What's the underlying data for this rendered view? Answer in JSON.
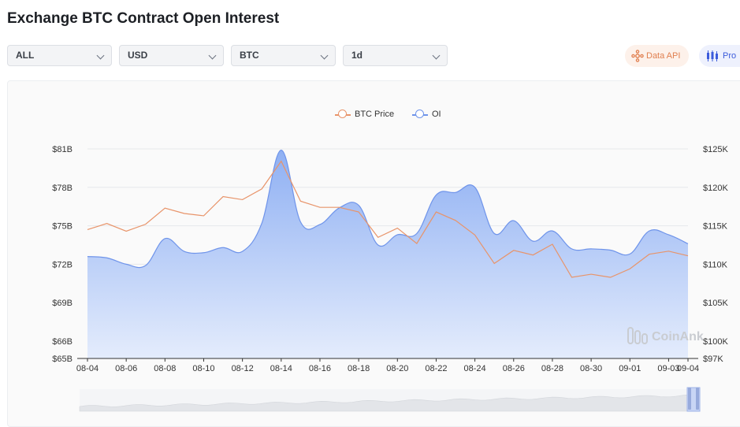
{
  "header": {
    "title": "Exchange BTC Contract Open Interest"
  },
  "filters": [
    {
      "value": "ALL"
    },
    {
      "value": "USD"
    },
    {
      "value": "BTC"
    },
    {
      "value": "1d"
    }
  ],
  "actions": {
    "data_api_label": "Data API",
    "pro_label": "Pro"
  },
  "watermark": "CoinAnk",
  "colors": {
    "oi": "#6f94ea",
    "oi_fill_top": "#8fb0f3",
    "oi_fill_bottom": "#e4ecfc",
    "price": "#e8946a"
  },
  "chart_data": {
    "type": "area",
    "x": [
      "08-04",
      "08-05",
      "08-06",
      "08-07",
      "08-08",
      "08-09",
      "08-10",
      "08-11",
      "08-12",
      "08-13",
      "08-14",
      "08-15",
      "08-16",
      "08-17",
      "08-18",
      "08-19",
      "08-20",
      "08-21",
      "08-22",
      "08-23",
      "08-24",
      "08-25",
      "08-26",
      "08-27",
      "08-28",
      "08-29",
      "08-30",
      "08-31",
      "09-01",
      "09-02",
      "09-03",
      "09-04"
    ],
    "x_ticks": [
      "08-04",
      "08-06",
      "08-08",
      "08-10",
      "08-12",
      "08-14",
      "08-16",
      "08-18",
      "08-20",
      "08-22",
      "08-24",
      "08-26",
      "08-28",
      "08-30",
      "09-01",
      "09-03",
      "09-04"
    ],
    "series": [
      {
        "name": "OI",
        "axis": "left",
        "values": [
          72.6,
          72.5,
          72.0,
          71.9,
          74.0,
          73.0,
          72.9,
          73.3,
          73.0,
          75.2,
          80.9,
          75.3,
          75.1,
          76.4,
          76.6,
          73.5,
          74.3,
          74.4,
          77.4,
          77.6,
          78.0,
          74.4,
          75.4,
          73.8,
          74.6,
          73.2,
          73.2,
          73.1,
          72.8,
          74.6,
          74.3,
          73.6
        ]
      },
      {
        "name": "BTC Price",
        "axis": "right",
        "values": [
          114.5,
          115.3,
          114.3,
          115.2,
          117.3,
          116.6,
          116.3,
          118.8,
          118.4,
          119.8,
          123.4,
          118.2,
          117.4,
          117.4,
          116.8,
          113.5,
          114.7,
          112.7,
          116.8,
          115.7,
          113.8,
          110.1,
          111.8,
          111.2,
          112.6,
          108.3,
          108.7,
          108.3,
          109.4,
          111.3,
          111.7,
          111.1
        ]
      }
    ],
    "y_left": {
      "ticks": [
        "$65B",
        "$66B",
        "$69B",
        "$72B",
        "$75B",
        "$78B",
        "$81B"
      ],
      "range": [
        65,
        81
      ]
    },
    "y_right": {
      "ticks": [
        "$97K",
        "$100K",
        "$105K",
        "$110K",
        "$115K",
        "$120K",
        "$125K"
      ],
      "range": [
        97,
        125
      ]
    },
    "legend": [
      "BTC Price",
      "OI"
    ],
    "legend_position": "top-center",
    "grid": true
  }
}
